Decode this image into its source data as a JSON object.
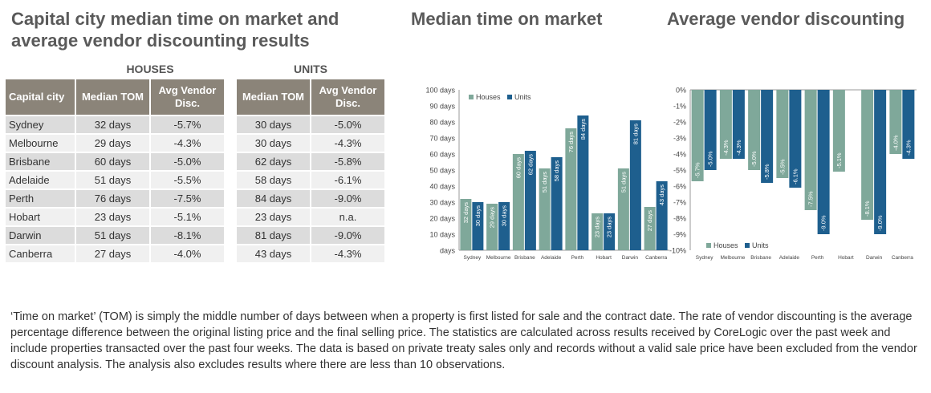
{
  "titles": {
    "main": "Capital city median time on market and average vendor discounting results",
    "tom_chart": "Median time on market",
    "disc_chart": "Average vendor discounting"
  },
  "table": {
    "group_houses": "HOUSES",
    "group_units": "UNITS",
    "col_city": "Capital city",
    "col_tom": "Median TOM",
    "col_disc": "Avg Vendor Disc.",
    "rows": [
      {
        "city": "Sydney",
        "houses_tom": "32 days",
        "houses_disc": "-5.7%",
        "units_tom": "30 days",
        "units_disc": "-5.0%"
      },
      {
        "city": "Melbourne",
        "houses_tom": "29 days",
        "houses_disc": "-4.3%",
        "units_tom": "30 days",
        "units_disc": "-4.3%"
      },
      {
        "city": "Brisbane",
        "houses_tom": "60 days",
        "houses_disc": "-5.0%",
        "units_tom": "62 days",
        "units_disc": "-5.8%"
      },
      {
        "city": "Adelaide",
        "houses_tom": "51 days",
        "houses_disc": "-5.5%",
        "units_tom": "58 days",
        "units_disc": "-6.1%"
      },
      {
        "city": "Perth",
        "houses_tom": "76 days",
        "houses_disc": "-7.5%",
        "units_tom": "84 days",
        "units_disc": "-9.0%"
      },
      {
        "city": "Hobart",
        "houses_tom": "23 days",
        "houses_disc": "-5.1%",
        "units_tom": "23 days",
        "units_disc": "n.a."
      },
      {
        "city": "Darwin",
        "houses_tom": "51 days",
        "houses_disc": "-8.1%",
        "units_tom": "81 days",
        "units_disc": "-9.0%"
      },
      {
        "city": "Canberra",
        "houses_tom": "27 days",
        "houses_disc": "-4.0%",
        "units_tom": "43 days",
        "units_disc": "-4.3%"
      }
    ]
  },
  "colors": {
    "houses": "#7fa89a",
    "units": "#1e5f8e",
    "header_bg": "#8b8479",
    "axis": "#999999"
  },
  "chart_data": [
    {
      "type": "bar",
      "title": "Median time on market",
      "categories": [
        "Sydney",
        "Melbourne",
        "Brisbane",
        "Adelaide",
        "Perth",
        "Hobart",
        "Darwin",
        "Canberra"
      ],
      "series": [
        {
          "name": "Houses",
          "values": [
            32,
            29,
            60,
            51,
            76,
            23,
            51,
            27
          ]
        },
        {
          "name": "Units",
          "values": [
            30,
            30,
            62,
            58,
            84,
            23,
            81,
            43
          ]
        }
      ],
      "data_labels": {
        "Houses": [
          "32 days",
          "29 days",
          "60 days",
          "51 days",
          "76 days",
          "23 days",
          "51 days",
          "27 days"
        ],
        "Units": [
          "30 days",
          "30 days",
          "62 days",
          "58 days",
          "84 days",
          "23 days",
          "81 days",
          "43 days"
        ]
      },
      "ylim": [
        0,
        100
      ],
      "yticks": [
        "days",
        "10 days",
        "20 days",
        "30 days",
        "40 days",
        "50 days",
        "60 days",
        "70 days",
        "80 days",
        "90 days",
        "100 days"
      ],
      "legend": "top-left",
      "grid": false
    },
    {
      "type": "bar",
      "title": "Average vendor discounting",
      "categories": [
        "Sydney",
        "Melbourne",
        "Brisbane",
        "Adelaide",
        "Perth",
        "Hobart",
        "Darwin",
        "Canberra"
      ],
      "series": [
        {
          "name": "Houses",
          "values": [
            -5.7,
            -4.3,
            -5.0,
            -5.5,
            -7.5,
            -5.1,
            -8.1,
            -4.0
          ]
        },
        {
          "name": "Units",
          "values": [
            -5.0,
            -4.3,
            -5.8,
            -6.1,
            -9.0,
            null,
            -9.0,
            -4.3
          ]
        }
      ],
      "data_labels": {
        "Houses": [
          "-5.7%",
          "-4.3%",
          "-5.0%",
          "-5.5%",
          "-7.5%",
          "-5.1%",
          "-8.1%",
          "-4.0%"
        ],
        "Units": [
          "-5.0%",
          "-4.3%",
          "-5.8%",
          "-6.1%",
          "-9.0%",
          "",
          "-9.0%",
          "-4.3%"
        ]
      },
      "ylim": [
        -10,
        0
      ],
      "yticks": [
        "0%",
        "-1%",
        "-2%",
        "-3%",
        "-4%",
        "-5%",
        "-6%",
        "-7%",
        "-8%",
        "-9%",
        "-10%"
      ],
      "legend": "bottom-left",
      "grid": false
    }
  ],
  "footnote": "‘Time on market’ (TOM) is simply the middle number of days between when a property is first listed for sale and the contract date.  The rate of vendor discounting is the average percentage difference between the original listing price and the final selling price.  The statistics are calculated across results received by CoreLogic over the past week and include properties transacted over the past four weeks. The data is based on private treaty sales only and records without a valid sale price have been excluded from the vendor discount analysis. The analysis also excludes results where there are less than 10 observations."
}
